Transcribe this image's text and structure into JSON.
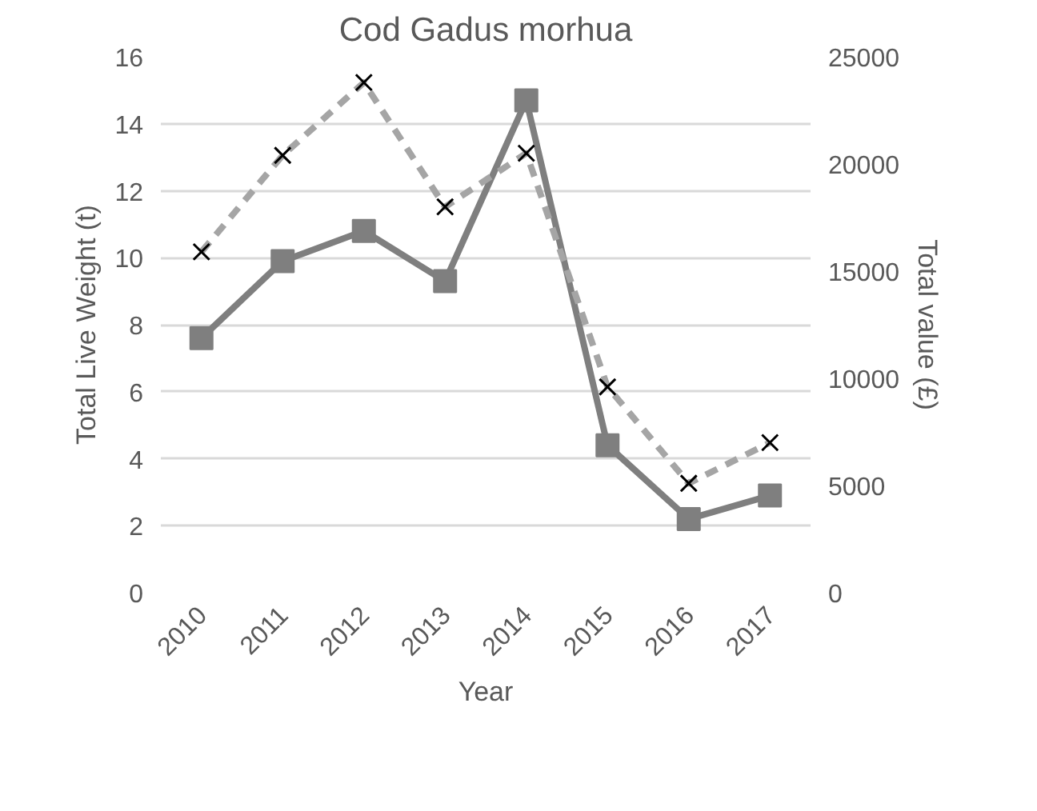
{
  "chart_data": {
    "type": "line",
    "title": "Cod Gadus morhua",
    "xlabel": "Year",
    "ylabel": "Total Live Weight (t)",
    "y2label": "Total value (£)",
    "categories": [
      "2010",
      "2011",
      "2012",
      "2013",
      "2014",
      "2015",
      "2016",
      "2017"
    ],
    "series": [
      {
        "color": "#7f7f7f",
        "marker": "square",
        "line_style": "solid",
        "values": [
          7.6,
          9.9,
          10.8,
          9.3,
          14.7,
          4.4,
          2.2,
          2.9
        ]
      },
      {
        "color": "#a5a5a5",
        "marker": "cross",
        "line_style": "dashed",
        "axis": "y2",
        "values": [
          15900,
          20400,
          23800,
          18000,
          20500,
          9600,
          5100,
          7000
        ]
      }
    ],
    "ylim": [
      0,
      16
    ],
    "yticks": [
      0,
      2,
      4,
      6,
      8,
      10,
      12,
      14,
      16
    ],
    "y2lim": [
      0,
      25000
    ],
    "y2ticks": [
      0,
      5000,
      10000,
      15000,
      20000,
      25000
    ],
    "grid": "y"
  }
}
